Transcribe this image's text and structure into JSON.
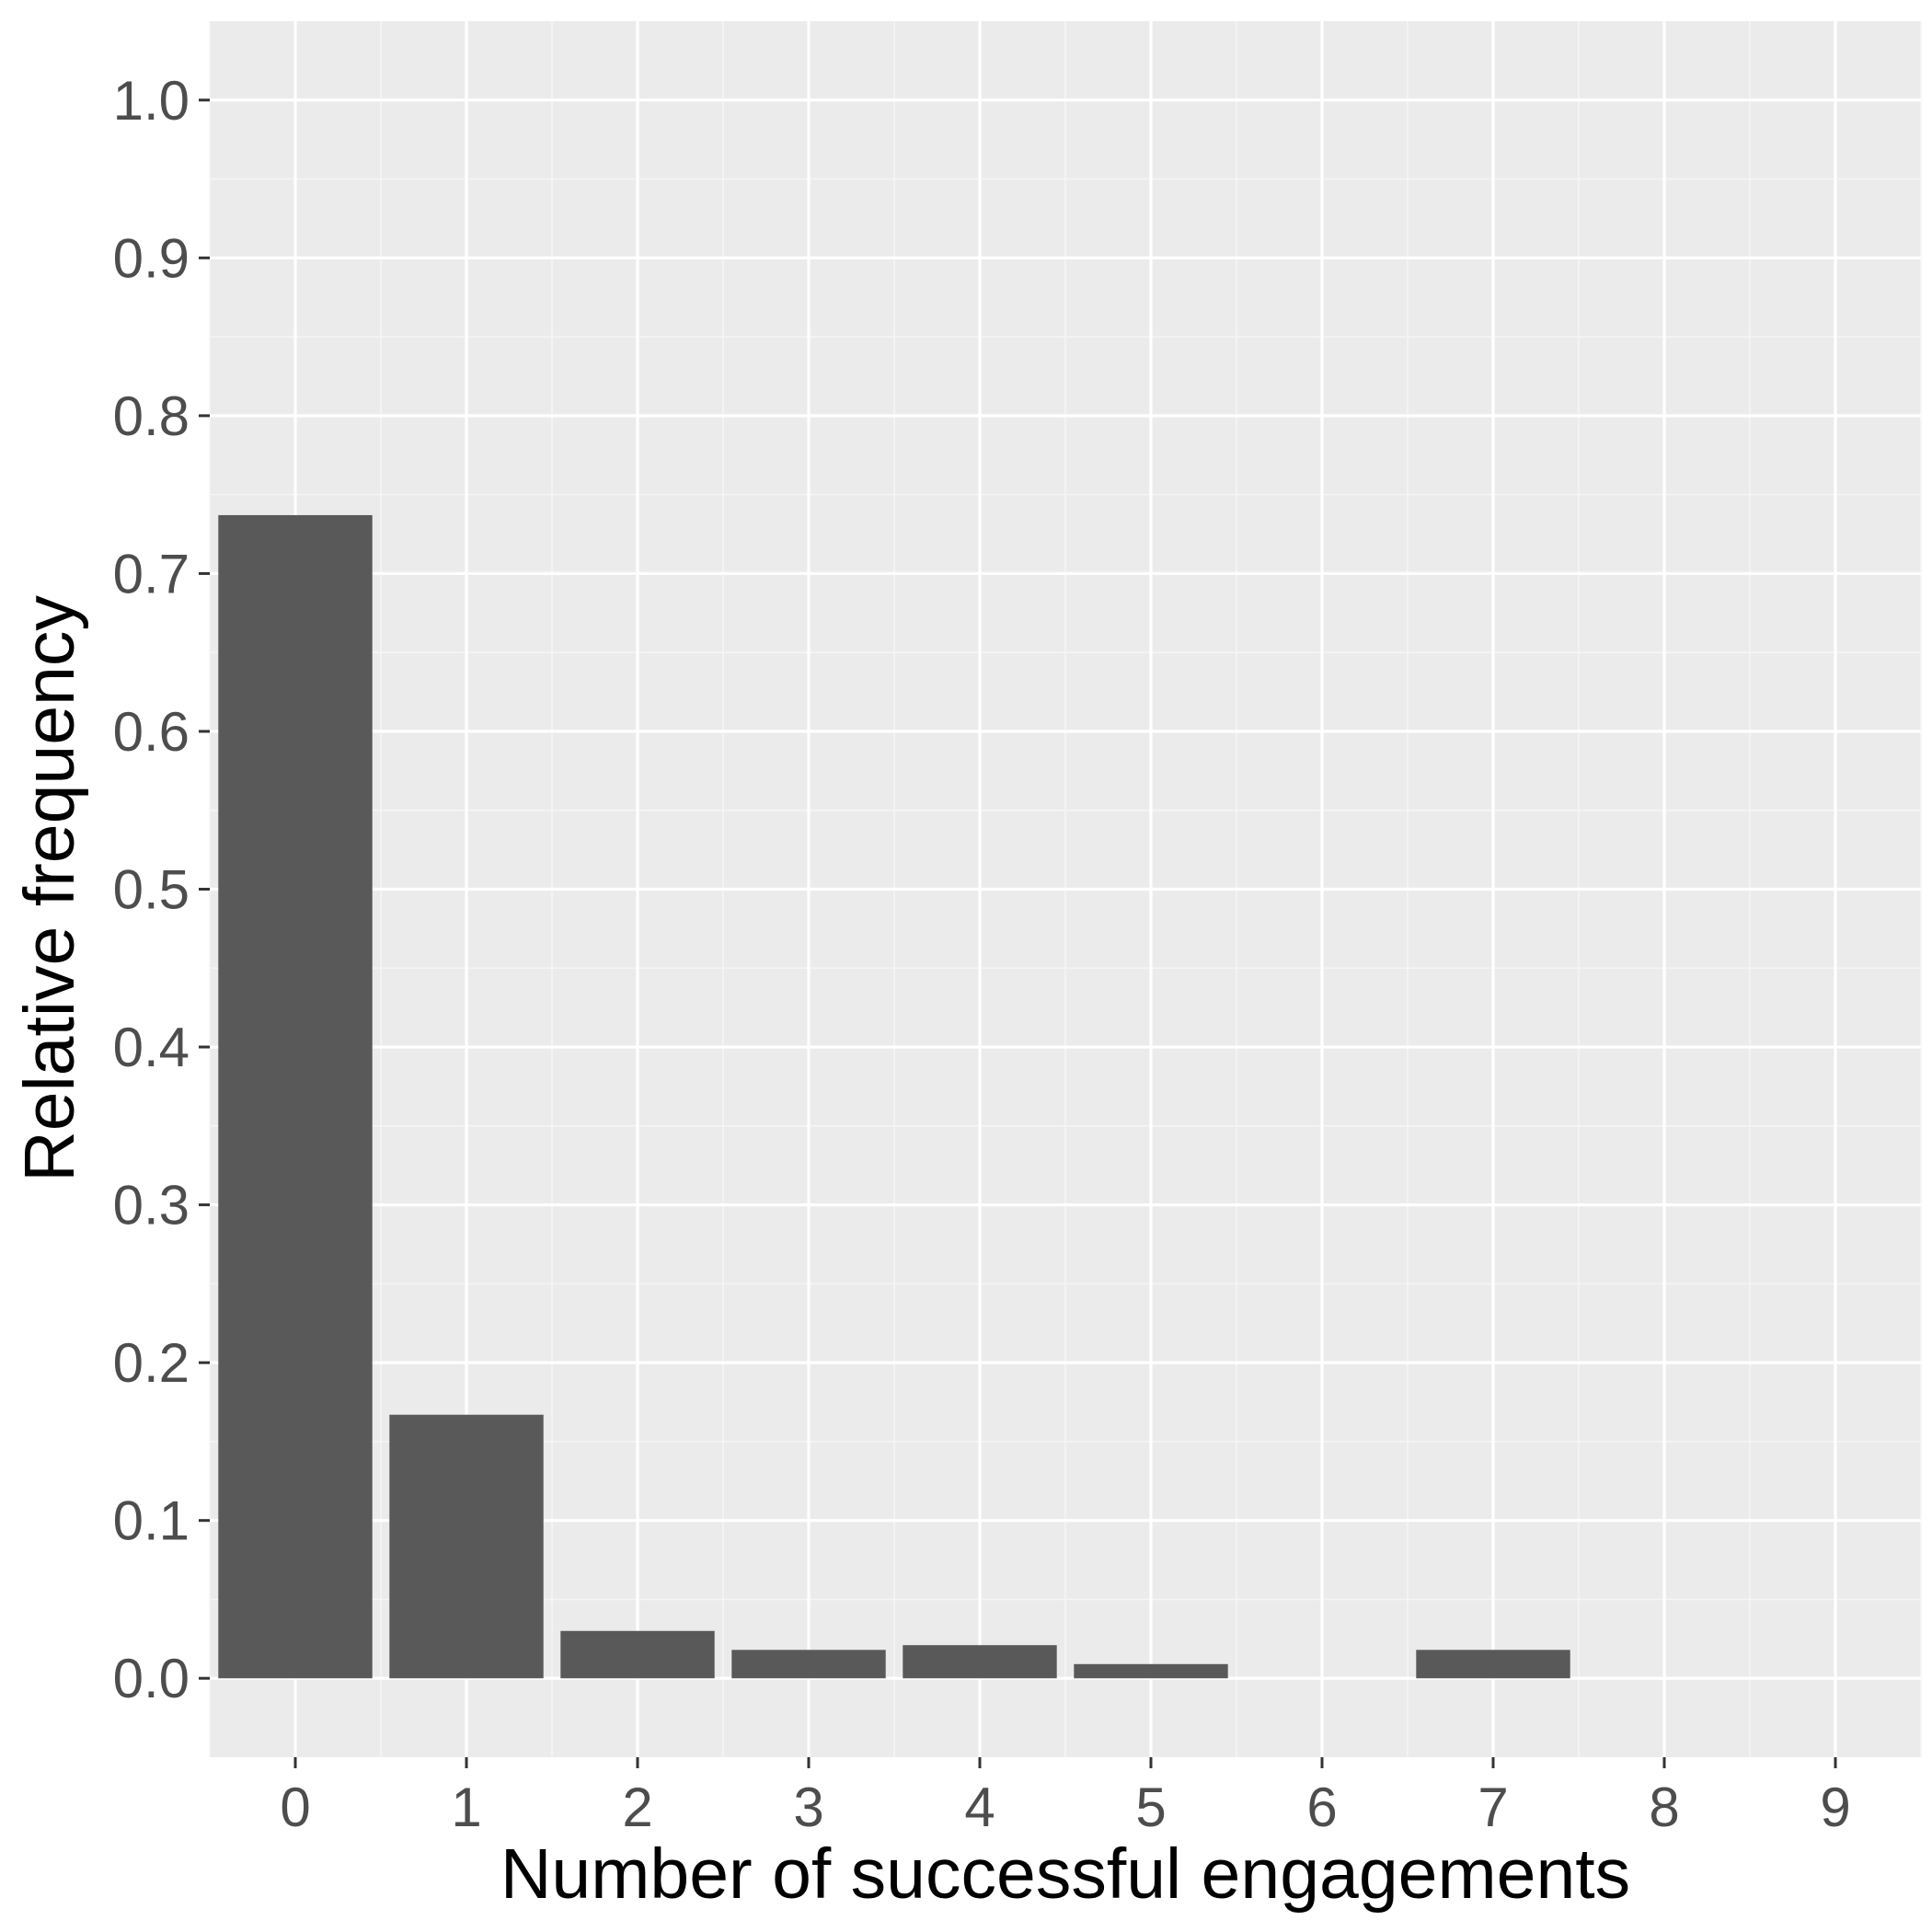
{
  "chart_data": {
    "type": "bar",
    "xlabel": "Number of successful engagements",
    "ylabel": "Relative frequency",
    "categories": [
      "0",
      "1",
      "2",
      "3",
      "4",
      "5",
      "6",
      "7",
      "8",
      "9"
    ],
    "values": [
      0.737,
      0.167,
      0.03,
      0.018,
      0.021,
      0.009,
      0.0,
      0.018,
      0.0,
      0.0
    ],
    "ylim": [
      -0.05,
      1.05
    ],
    "xlim": [
      -0.5,
      9.5
    ],
    "y_ticks": [
      "0.0",
      "0.1",
      "0.2",
      "0.3",
      "0.4",
      "0.5",
      "0.6",
      "0.7",
      "0.8",
      "0.9",
      "1.0"
    ],
    "grid": true,
    "colors": {
      "panel_background": "#ebebeb",
      "grid_major": "#ffffff",
      "grid_minor": "#f5f5f5",
      "bar_fill": "#595959",
      "tick_text": "#4d4d4d",
      "axis_title": "#000000"
    }
  }
}
